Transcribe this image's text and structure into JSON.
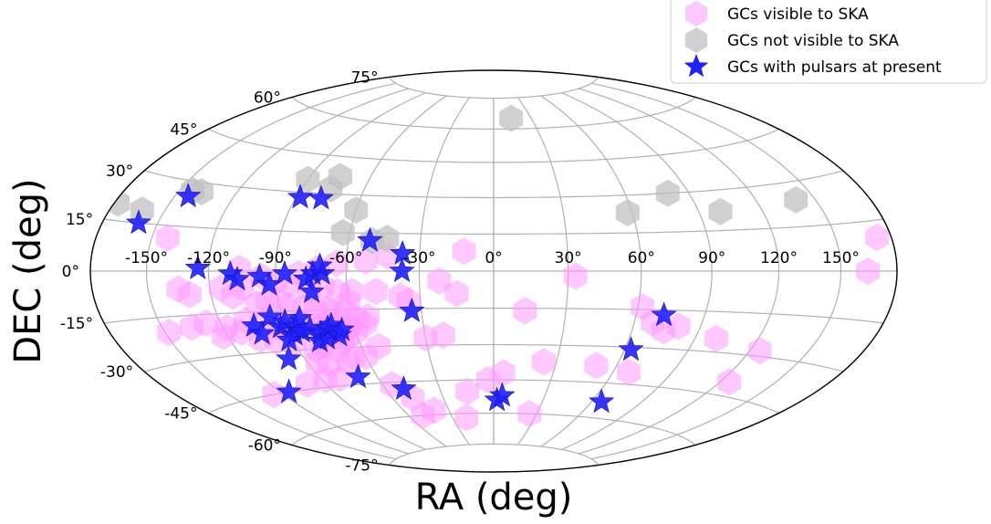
{
  "chart_data": {
    "type": "scatter",
    "projection": "hammer-aitoff",
    "xlabel": "RA (deg)",
    "ylabel": "DEC (deg)",
    "xlim": [
      -180,
      180
    ],
    "ylim": [
      -90,
      90
    ],
    "grid": true,
    "legend_placement": "top-right",
    "x_ticks": [
      -150,
      -120,
      -90,
      -60,
      -30,
      0,
      30,
      60,
      90,
      120,
      150
    ],
    "x_tick_labels": [
      "-150°",
      "-120°",
      "-90°",
      "-60°",
      "-30°",
      "0°",
      "30°",
      "60°",
      "90°",
      "120°",
      "150°"
    ],
    "y_ticks": [
      -75,
      -60,
      -45,
      -30,
      -15,
      0,
      15,
      30,
      45,
      60,
      75
    ],
    "y_tick_labels": [
      "-75°",
      "-60°",
      "-45°",
      "-30°",
      "-15°",
      "0°",
      "15°",
      "30°",
      "45°",
      "60°",
      "75°"
    ],
    "series": [
      {
        "name": "GCs visible to SKA",
        "marker": "hexagon",
        "color": "#ff99ff",
        "points": [
          [
            -148,
            -20
          ],
          [
            -135,
            -19
          ],
          [
            -127,
            -18
          ],
          [
            -122,
            -23
          ],
          [
            -130,
            -8
          ],
          [
            -135,
            -6
          ],
          [
            -115,
            -6
          ],
          [
            -110,
            -9
          ],
          [
            -105,
            -6
          ],
          [
            -100,
            -12
          ],
          [
            -95,
            -11
          ],
          [
            -90,
            -11
          ],
          [
            -86,
            -13
          ],
          [
            -80,
            -14
          ],
          [
            -75,
            -15
          ],
          [
            -70,
            -15
          ],
          [
            -68,
            -16
          ],
          [
            -62,
            -16
          ],
          [
            -58,
            -19
          ],
          [
            -55,
            -21
          ],
          [
            -53,
            -18
          ],
          [
            -60,
            -24
          ],
          [
            -65,
            -26
          ],
          [
            -68,
            -28
          ],
          [
            -72,
            -31
          ],
          [
            -78,
            -29
          ],
          [
            -82,
            -30
          ],
          [
            -90,
            -27
          ],
          [
            -98,
            -26
          ],
          [
            -105,
            -25
          ],
          [
            -112,
            -22
          ],
          [
            -118,
            -20
          ],
          [
            -108,
            -18
          ],
          [
            -100,
            -19
          ],
          [
            -94,
            -21
          ],
          [
            -88,
            -22
          ],
          [
            -82,
            -20
          ],
          [
            -76,
            -22
          ],
          [
            -72,
            -20
          ],
          [
            -66,
            -20
          ],
          [
            -62,
            -22
          ],
          [
            -72,
            -24
          ],
          [
            -80,
            -36
          ],
          [
            -85,
            -35
          ],
          [
            -70,
            -36
          ],
          [
            -66,
            -34
          ],
          [
            -60,
            -34
          ],
          [
            -52,
            -30
          ],
          [
            -55,
            -46
          ],
          [
            -48,
            -52
          ],
          [
            -40,
            -58
          ],
          [
            -50,
            -60
          ],
          [
            -20,
            -62
          ],
          [
            25,
            -60
          ],
          [
            -125,
            -45
          ],
          [
            -100,
            -43
          ],
          [
            -88,
            -42
          ],
          [
            -80,
            -42
          ],
          [
            -142,
            11
          ],
          [
            -64,
            3
          ],
          [
            -52,
            4
          ],
          [
            -43,
            6
          ],
          [
            -12,
            8
          ],
          [
            -22,
            -4
          ],
          [
            -48,
            -8
          ],
          [
            -60,
            -12
          ],
          [
            -35,
            -12
          ],
          [
            -15,
            -9
          ],
          [
            13,
            -16
          ],
          [
            33,
            -2
          ],
          [
            62,
            -14
          ],
          [
            68,
            -20
          ],
          [
            74,
            -23
          ],
          [
            80,
            -21
          ],
          [
            100,
            -25
          ],
          [
            125,
            -28
          ],
          [
            50,
            -38
          ],
          [
            68,
            -40
          ],
          [
            125,
            -40
          ],
          [
            24,
            -37
          ],
          [
            164,
            0
          ],
          [
            172,
            10
          ],
          [
            -38,
            -10
          ],
          [
            -30,
            -27
          ],
          [
            -22,
            -26
          ],
          [
            -15,
            -50
          ],
          [
            -3,
            -45
          ],
          [
            5,
            -42
          ],
          [
            -90,
            -4
          ],
          [
            -84,
            -5
          ],
          [
            -76,
            -7
          ],
          [
            -70,
            -6
          ],
          [
            -64,
            -8
          ],
          [
            -58,
            -8
          ],
          [
            -96,
            -2
          ],
          [
            -106,
            1
          ],
          [
            -80,
            -1
          ],
          [
            -72,
            1
          ]
        ]
      },
      {
        "name": "GCs not visible to SKA",
        "marker": "hexagon",
        "color": "#c0c0c0",
        "points": [
          [
            -178,
            20
          ],
          [
            -162,
            19
          ],
          [
            -143,
            27
          ],
          [
            -138,
            27
          ],
          [
            -90,
            35
          ],
          [
            -75,
            37
          ],
          [
            -76,
            32
          ],
          [
            -60,
            24
          ],
          [
            -63,
            15
          ],
          [
            -50,
            12
          ],
          [
            -44,
            13
          ],
          [
            14,
            65
          ],
          [
            58,
            23
          ],
          [
            80,
            30
          ],
          [
            100,
            22
          ],
          [
            140,
            24
          ]
        ]
      },
      {
        "name": "GCs with pulsars at present",
        "marker": "star",
        "color": "#1f1fff",
        "points": [
          [
            -143,
            25
          ],
          [
            -160,
            15
          ],
          [
            -125,
            1
          ],
          [
            -110,
            -1
          ],
          [
            -107,
            -3
          ],
          [
            -97,
            -2
          ],
          [
            -93,
            -5
          ],
          [
            -86,
            -1
          ],
          [
            -77,
            -3
          ],
          [
            -75,
            -8
          ],
          [
            -74,
            -1
          ],
          [
            -70,
            -1
          ],
          [
            -71,
            2
          ],
          [
            -88,
            28
          ],
          [
            -78,
            28
          ],
          [
            -51,
            12
          ],
          [
            -37,
            7
          ],
          [
            -37,
            0
          ],
          [
            -34,
            -16
          ],
          [
            -105,
            -20
          ],
          [
            -103,
            -23
          ],
          [
            -96,
            -17
          ],
          [
            -93,
            -21
          ],
          [
            -90,
            -19
          ],
          [
            -88,
            -24
          ],
          [
            -86,
            -21
          ],
          [
            -84,
            -23
          ],
          [
            -83,
            -18
          ],
          [
            -80,
            -22
          ],
          [
            -78,
            -27
          ],
          [
            -76,
            -24
          ],
          [
            -74,
            -26
          ],
          [
            -72,
            -22
          ],
          [
            -70,
            -21
          ],
          [
            -68,
            -25
          ],
          [
            -66,
            -23
          ],
          [
            -92,
            -26
          ],
          [
            -98,
            -33
          ],
          [
            -115,
            -45
          ],
          [
            -70,
            -42
          ],
          [
            -50,
            -48
          ],
          [
            2,
            -54
          ],
          [
            5,
            -52
          ],
          [
            63,
            -31
          ],
          [
            72,
            -17
          ],
          [
            66,
            -53
          ]
        ]
      }
    ]
  }
}
